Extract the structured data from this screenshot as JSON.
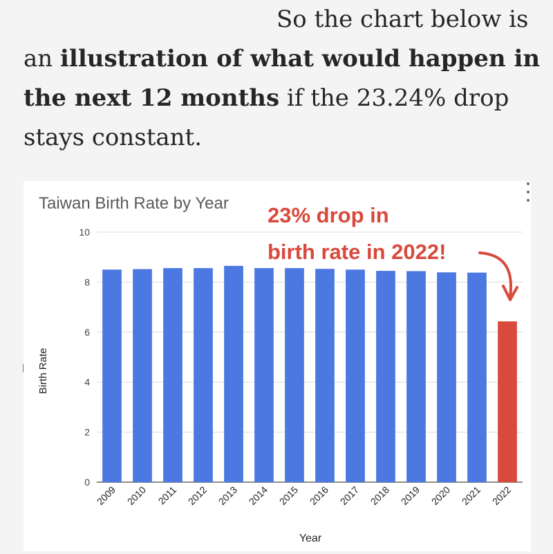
{
  "article": {
    "line1": "So the chart below is",
    "line2_prefix": "an ",
    "line2_bold": "illustration of what would happen in",
    "line3_bold": "the next 12 months",
    "line3_suffix": " if the 23.24% drop",
    "line4": "stays constant."
  },
  "chart_data": {
    "type": "bar",
    "title": "Taiwan Birth Rate by Year",
    "xlabel": "Year",
    "ylabel": "Birth Rate",
    "ylim": [
      0,
      10
    ],
    "yticks": [
      0,
      2,
      4,
      6,
      8,
      10
    ],
    "grid": true,
    "categories": [
      "2009",
      "2010",
      "2011",
      "2012",
      "2013",
      "2014",
      "2015",
      "2016",
      "2017",
      "2018",
      "2019",
      "2020",
      "2021",
      "2022"
    ],
    "values": [
      8.5,
      8.52,
      8.56,
      8.56,
      8.65,
      8.56,
      8.56,
      8.53,
      8.5,
      8.45,
      8.44,
      8.39,
      8.38,
      6.43
    ],
    "colors": {
      "bar": "#4b78e1",
      "highlight": "#d9493c",
      "annotation": "#d9493c",
      "grid": "#dcdcdc",
      "text": "#444444"
    },
    "highlight_category": "2022",
    "annotation_lines": [
      "23% drop in",
      "birth rate in 2022!"
    ]
  }
}
